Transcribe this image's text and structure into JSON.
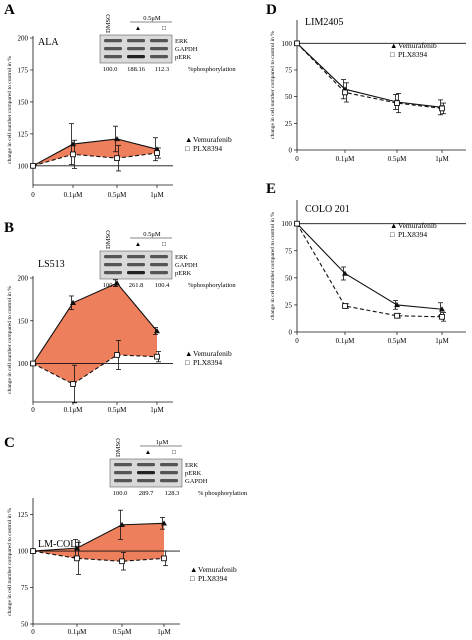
{
  "panels": [
    {
      "letter": "A",
      "cell_line": "ALA",
      "blot": {
        "lanes": [
          "DMSO",
          "▲",
          "□"
        ],
        "dose": "0.5μM",
        "bands": [
          "ERK",
          "GAPDH",
          "pERK"
        ],
        "values": [
          "100.0",
          "188.16",
          "112.3"
        ],
        "unit": "%phosphorylation"
      }
    },
    {
      "letter": "B",
      "cell_line": "LS513",
      "blot": {
        "lanes": [
          "DMSO",
          "▲",
          "□"
        ],
        "dose": "0.5μM",
        "bands": [
          "ERK",
          "GAPDH",
          "pERK"
        ],
        "values": [
          "100.0",
          "261.8",
          "100.4"
        ],
        "unit": "%phosphorylation"
      }
    },
    {
      "letter": "C",
      "cell_line": "LM-COL1",
      "blot": {
        "lanes": [
          "DMSO",
          "▲",
          "□"
        ],
        "dose": "1μM",
        "bands": [
          "ERK",
          "pERK",
          "GAPDH"
        ],
        "values": [
          "100.0",
          "289.7",
          "128.3"
        ],
        "unit": "% phosphorylation"
      }
    },
    {
      "letter": "D",
      "cell_line": "LIM2405"
    },
    {
      "letter": "E",
      "cell_line": "COLO 201"
    }
  ],
  "legend": {
    "marker_tri": "▲",
    "marker_sq": "□",
    "vem": "Vemurafenib",
    "plx": "PLX8394"
  },
  "colors": {
    "fill": "#ee7f5c",
    "line": "#111111"
  },
  "chart_data": [
    {
      "type": "line",
      "panel": "A",
      "categories": [
        "0",
        "0.1μM",
        "0.5μM",
        "1μM"
      ],
      "ylabel": "change in cell number compared to control in %",
      "yticks": [
        100,
        125,
        150,
        175,
        200
      ],
      "ylim": [
        85,
        200
      ],
      "shaded_between_series": true,
      "series": [
        {
          "name": "Vemurafenib",
          "values": [
            100,
            117,
            121,
            113
          ],
          "errors": [
            0,
            16,
            10,
            9
          ]
        },
        {
          "name": "PLX8394",
          "values": [
            100,
            109,
            106,
            110
          ],
          "errors": [
            0,
            11,
            10,
            4
          ]
        }
      ]
    },
    {
      "type": "line",
      "panel": "B",
      "categories": [
        "0",
        "0.1μM",
        "0.5μM",
        "1μM"
      ],
      "ylabel": "change in cell number compared to control in %",
      "yticks": [
        100,
        150,
        200
      ],
      "ylim": [
        55,
        200
      ],
      "shaded_between_series": true,
      "series": [
        {
          "name": "Vemurafenib",
          "values": [
            100,
            171,
            194,
            138
          ],
          "errors": [
            0,
            8,
            4,
            4
          ]
        },
        {
          "name": "PLX8394",
          "values": [
            100,
            76,
            110,
            108
          ],
          "errors": [
            0,
            22,
            17,
            6
          ]
        }
      ]
    },
    {
      "type": "line",
      "panel": "C",
      "categories": [
        "0",
        "0.1μM",
        "0.5μM",
        "1μM"
      ],
      "ylabel": "change in cell number compared to control in %",
      "yticks": [
        50,
        75,
        100,
        125
      ],
      "ylim": [
        50,
        135
      ],
      "shaded_between_series": true,
      "series": [
        {
          "name": "Vemurafenib",
          "values": [
            100,
            102,
            118,
            119
          ],
          "errors": [
            0,
            6,
            10,
            4
          ]
        },
        {
          "name": "PLX8394",
          "values": [
            100,
            95,
            93,
            95
          ],
          "errors": [
            0,
            11,
            6,
            5
          ]
        }
      ]
    },
    {
      "type": "line",
      "panel": "D",
      "categories": [
        "0",
        "0.1μM",
        "0.5μM",
        "1μM"
      ],
      "ylabel": "change in cell number compared to control in %",
      "yticks": [
        0,
        25,
        50,
        75,
        100
      ],
      "ylim": [
        0,
        120
      ],
      "reference_line": 100,
      "series": [
        {
          "name": "Vemurafenib",
          "values": [
            100,
            57,
            45,
            40
          ],
          "errors": [
            0,
            9,
            7,
            7
          ]
        },
        {
          "name": "PLX8394",
          "values": [
            100,
            54,
            44,
            39
          ],
          "errors": [
            0,
            9,
            9,
            5
          ]
        }
      ]
    },
    {
      "type": "line",
      "panel": "E",
      "categories": [
        "0",
        "0.1μM",
        "0.5μM",
        "1μM"
      ],
      "ylabel": "change in cell number compared to control in %",
      "yticks": [
        0,
        25,
        50,
        75,
        100
      ],
      "ylim": [
        0,
        120
      ],
      "reference_line": 100,
      "series": [
        {
          "name": "Vemurafenib",
          "values": [
            100,
            54,
            25,
            21
          ],
          "errors": [
            0,
            6,
            4,
            6
          ]
        },
        {
          "name": "PLX8394",
          "values": [
            100,
            24,
            15,
            14
          ],
          "errors": [
            0,
            2,
            2,
            4
          ]
        }
      ]
    }
  ]
}
